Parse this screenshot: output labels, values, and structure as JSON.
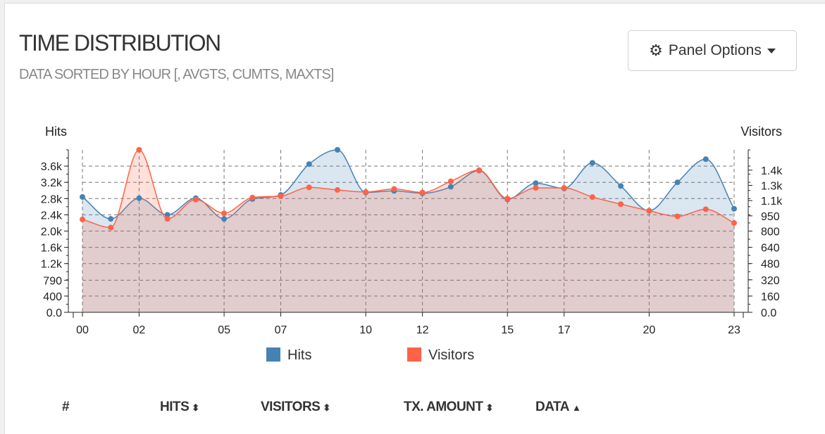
{
  "panel": {
    "title": "TIME DISTRIBUTION",
    "subtitle": "DATA SORTED BY HOUR [, AVGTS, CUMTS, MAXTS]",
    "options_label": "Panel Options"
  },
  "chart_data": {
    "type": "area",
    "x": [
      "00",
      "01",
      "02",
      "03",
      "04",
      "05",
      "06",
      "07",
      "08",
      "09",
      "10",
      "11",
      "12",
      "13",
      "14",
      "15",
      "16",
      "17",
      "18",
      "19",
      "20",
      "21",
      "22",
      "23"
    ],
    "x_tick_labels": [
      "00",
      "02",
      "05",
      "07",
      "10",
      "12",
      "15",
      "17",
      "20",
      "23"
    ],
    "y_left": {
      "label": "Hits",
      "ylim": [
        0,
        4000
      ],
      "tick_values": [
        0,
        400,
        790,
        1200,
        1600,
        2000,
        2400,
        2800,
        3200,
        3600
      ],
      "tick_labels": [
        "0.0",
        "400",
        "790",
        "1.2k",
        "1.6k",
        "2.0k",
        "2.4k",
        "2.8k",
        "3.2k",
        "3.6k"
      ]
    },
    "y_right": {
      "label": "Visitors",
      "ylim": [
        0,
        1600
      ],
      "tick_values": [
        0,
        160,
        320,
        480,
        640,
        800,
        950,
        1100,
        1250,
        1400
      ],
      "tick_labels": [
        "0.0",
        "160",
        "320",
        "480",
        "640",
        "800",
        "950",
        "1.1k",
        "1.3k",
        "1.4k"
      ]
    },
    "series": [
      {
        "name": "Hits",
        "axis": "left",
        "color": "#4682b4",
        "values": [
          2840,
          2300,
          2810,
          2400,
          2810,
          2300,
          2790,
          2890,
          3650,
          4000,
          2950,
          2990,
          2930,
          3090,
          3490,
          2780,
          3180,
          3050,
          3680,
          3110,
          2500,
          3200,
          3770,
          2550
        ]
      },
      {
        "name": "Visitors",
        "axis": "right",
        "color": "#ff6347",
        "values": [
          915,
          835,
          1600,
          920,
          1110,
          975,
          1130,
          1145,
          1230,
          1205,
          1185,
          1215,
          1180,
          1290,
          1400,
          1120,
          1225,
          1225,
          1135,
          1065,
          1000,
          945,
          1015,
          880
        ]
      }
    ],
    "grid": true,
    "legend": "bottom"
  },
  "table": {
    "headers": [
      "#",
      "HITS",
      "VISITORS",
      "TX. AMOUNT",
      "DATA"
    ]
  }
}
